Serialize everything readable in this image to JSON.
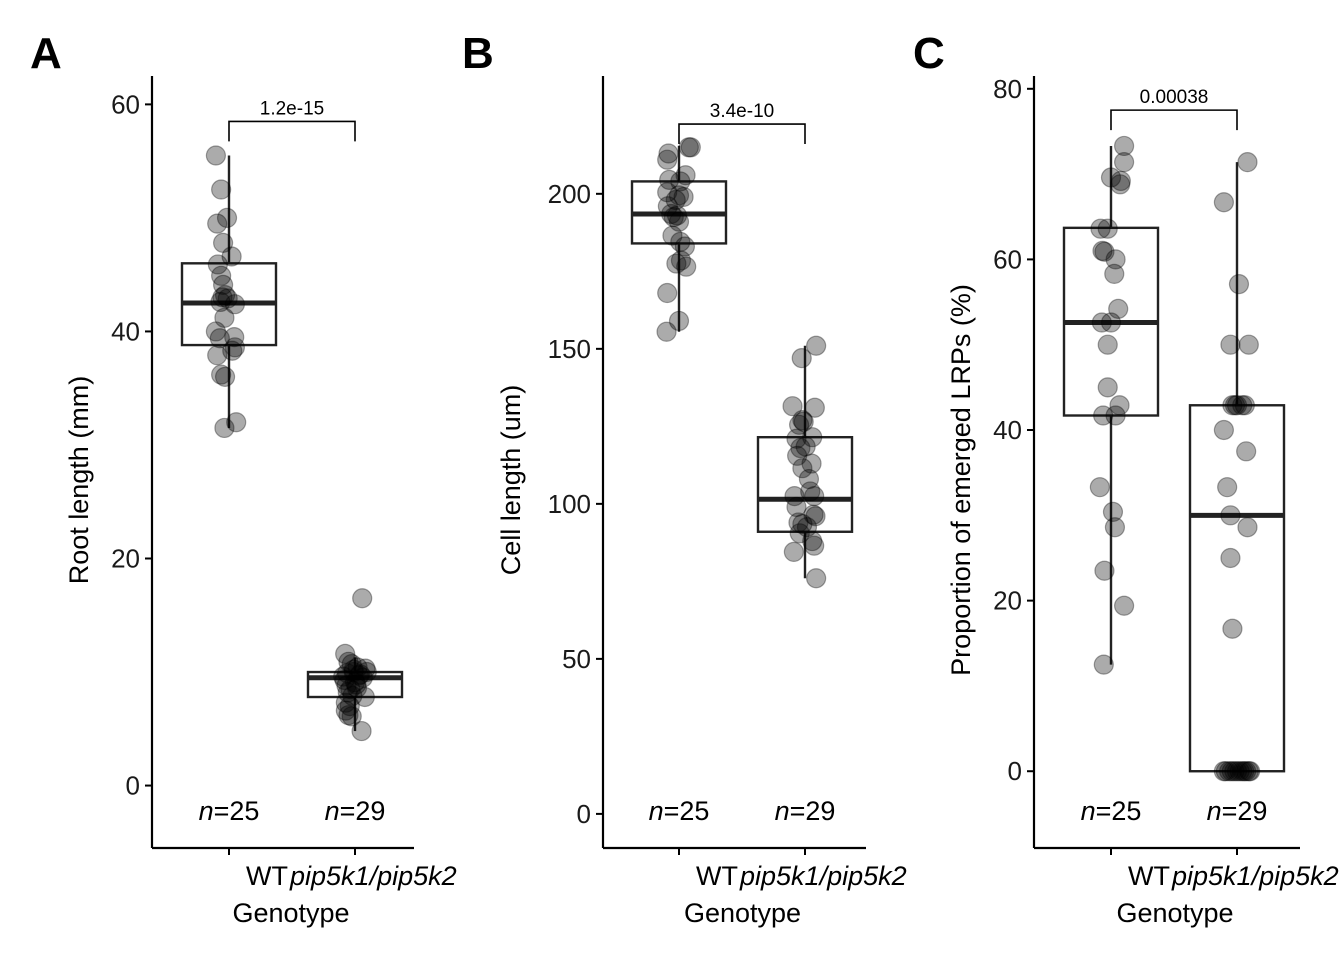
{
  "figure": {
    "panels": [
      {
        "letter": "A",
        "ylabel": "Root length (mm)",
        "xlabel": "Genotype",
        "categories": [
          "WT",
          "pip5k1/pip5k2"
        ],
        "n_labels": [
          {
            "prefix": "n",
            "text": "=25"
          },
          {
            "prefix": "n",
            "text": "=29"
          }
        ],
        "p_value": "1.2e-15",
        "y_ticks": [
          "0",
          "20",
          "40",
          "60"
        ]
      },
      {
        "letter": "B",
        "ylabel": "Cell length (um)",
        "xlabel": "Genotype",
        "categories": [
          "WT",
          "pip5k1/pip5k2"
        ],
        "n_labels": [
          {
            "prefix": "n",
            "text": "=25"
          },
          {
            "prefix": "n",
            "text": "=29"
          }
        ],
        "p_value": "3.4e-10",
        "y_ticks": [
          "0",
          "50",
          "100",
          "150",
          "200"
        ]
      },
      {
        "letter": "C",
        "ylabel": "Proportion of emerged LRPs (%)",
        "xlabel": "Genotype",
        "categories": [
          "WT",
          "pip5k1/pip5k2"
        ],
        "n_labels": [
          {
            "prefix": "n",
            "text": "=25"
          },
          {
            "prefix": "n",
            "text": "=29"
          }
        ],
        "p_value": "0.00038",
        "y_ticks": [
          "0",
          "20",
          "40",
          "60",
          "80"
        ]
      }
    ]
  },
  "chart_data": [
    {
      "type": "box",
      "title": "",
      "xlabel": "Genotype",
      "ylabel": "Root length (mm)",
      "categories": [
        "WT",
        "pip5k1/pip5k2"
      ],
      "ylim": [
        -5.5,
        62.5
      ],
      "y_ticks": [
        0,
        20,
        40,
        60
      ],
      "series": [
        {
          "category": "WT",
          "box": {
            "q1": 38.8,
            "median": 42.5,
            "q3": 46.0,
            "whisker_low": 31.5,
            "whisker_high": 55.5
          },
          "points": [
            {
              "offset": -0.2,
              "y": 55.5
            },
            {
              "offset": -0.12,
              "y": 52.5
            },
            {
              "offset": -0.18,
              "y": 49.5
            },
            {
              "offset": -0.03,
              "y": 50.0
            },
            {
              "offset": -0.09,
              "y": 47.8
            },
            {
              "offset": 0.04,
              "y": 46.6
            },
            {
              "offset": -0.17,
              "y": 45.9
            },
            {
              "offset": -0.12,
              "y": 44.9
            },
            {
              "offset": -0.1,
              "y": 43.0
            },
            {
              "offset": -0.06,
              "y": 43.2
            },
            {
              "offset": -0.13,
              "y": 42.6
            },
            {
              "offset": -0.02,
              "y": 42.9
            },
            {
              "offset": 0.09,
              "y": 42.4
            },
            {
              "offset": -0.07,
              "y": 41.2
            },
            {
              "offset": -0.2,
              "y": 40.0
            },
            {
              "offset": -0.14,
              "y": 39.4
            },
            {
              "offset": 0.08,
              "y": 39.5
            },
            {
              "offset": 0.09,
              "y": 38.6
            },
            {
              "offset": -0.18,
              "y": 37.9
            },
            {
              "offset": 0.05,
              "y": 38.3
            },
            {
              "offset": -0.12,
              "y": 36.2
            },
            {
              "offset": -0.06,
              "y": 36.0
            },
            {
              "offset": -0.07,
              "y": 31.5
            },
            {
              "offset": 0.11,
              "y": 32.0
            },
            {
              "offset": -0.09,
              "y": 44.1
            }
          ]
        },
        {
          "category": "pip5k1/pip5k2",
          "box": {
            "q1": 7.8,
            "median": 9.5,
            "q3": 10.0,
            "whisker_low": 4.8,
            "whisker_high": 11.3
          },
          "points": [
            {
              "offset": 0.11,
              "y": 16.5
            },
            {
              "offset": -0.15,
              "y": 11.6
            },
            {
              "offset": -0.1,
              "y": 10.9
            },
            {
              "offset": -0.05,
              "y": 10.7
            },
            {
              "offset": 0.16,
              "y": 10.3
            },
            {
              "offset": 0.04,
              "y": 10.4
            },
            {
              "offset": -0.12,
              "y": 9.9
            },
            {
              "offset": -0.02,
              "y": 10.0
            },
            {
              "offset": 0.08,
              "y": 9.8
            },
            {
              "offset": -0.16,
              "y": 9.3
            },
            {
              "offset": 0.0,
              "y": 9.1
            },
            {
              "offset": 0.12,
              "y": 9.5
            },
            {
              "offset": -0.13,
              "y": 8.8
            },
            {
              "offset": -0.07,
              "y": 8.5
            },
            {
              "offset": 0.03,
              "y": 8.6
            },
            {
              "offset": -0.11,
              "y": 8.2
            },
            {
              "offset": -0.04,
              "y": 7.9
            },
            {
              "offset": 0.15,
              "y": 7.8
            },
            {
              "offset": -0.14,
              "y": 7.3
            },
            {
              "offset": -0.08,
              "y": 7.0
            },
            {
              "offset": -0.14,
              "y": 6.6
            },
            {
              "offset": -0.1,
              "y": 6.2
            },
            {
              "offset": -0.05,
              "y": 6.1
            },
            {
              "offset": 0.1,
              "y": 4.8
            },
            {
              "offset": 0.06,
              "y": 9.7
            },
            {
              "offset": -0.02,
              "y": 10.2
            },
            {
              "offset": 0.18,
              "y": 10.0
            },
            {
              "offset": -0.18,
              "y": 9.6
            },
            {
              "offset": 0.02,
              "y": 8.9
            }
          ]
        }
      ],
      "annotations": [
        {
          "type": "bracket",
          "text": "1.2e-15",
          "y": 58.5
        }
      ]
    },
    {
      "type": "box",
      "title": "",
      "xlabel": "Genotype",
      "ylabel": "Cell length (um)",
      "categories": [
        "WT",
        "pip5k1/pip5k2"
      ],
      "ylim": [
        -11,
        238
      ],
      "y_ticks": [
        0,
        50,
        100,
        150,
        200
      ],
      "series": [
        {
          "category": "WT",
          "box": {
            "q1": 184.0,
            "median": 193.5,
            "q3": 204.0,
            "whisker_low": 155.5,
            "whisker_high": 215.5
          },
          "points": [
            {
              "offset": -0.16,
              "y": 213.0
            },
            {
              "offset": -0.18,
              "y": 211.0
            },
            {
              "offset": 0.15,
              "y": 215.0
            },
            {
              "offset": 0.18,
              "y": 215.0
            },
            {
              "offset": 0.1,
              "y": 206.0
            },
            {
              "offset": -0.15,
              "y": 204.5
            },
            {
              "offset": 0.02,
              "y": 204.0
            },
            {
              "offset": -0.18,
              "y": 200.5
            },
            {
              "offset": 0.0,
              "y": 199.5
            },
            {
              "offset": -0.05,
              "y": 198.0
            },
            {
              "offset": 0.07,
              "y": 199.0
            },
            {
              "offset": -0.17,
              "y": 196.0
            },
            {
              "offset": -0.12,
              "y": 193.5
            },
            {
              "offset": -0.08,
              "y": 192.5
            },
            {
              "offset": -0.03,
              "y": 193.0
            },
            {
              "offset": 0.0,
              "y": 191.0
            },
            {
              "offset": -0.1,
              "y": 186.5
            },
            {
              "offset": 0.02,
              "y": 184.5
            },
            {
              "offset": 0.09,
              "y": 183.0
            },
            {
              "offset": -0.04,
              "y": 177.5
            },
            {
              "offset": 0.03,
              "y": 178.5
            },
            {
              "offset": 0.11,
              "y": 176.5
            },
            {
              "offset": -0.18,
              "y": 168.0
            },
            {
              "offset": 0.0,
              "y": 159.0
            },
            {
              "offset": -0.19,
              "y": 155.5
            }
          ]
        },
        {
          "category": "pip5k1/pip5k2",
          "box": {
            "q1": 91.0,
            "median": 101.5,
            "q3": 121.5,
            "whisker_low": 76.0,
            "whisker_high": 151.0
          },
          "points": [
            {
              "offset": 0.17,
              "y": 151.0
            },
            {
              "offset": -0.05,
              "y": 147.0
            },
            {
              "offset": -0.19,
              "y": 131.5
            },
            {
              "offset": 0.15,
              "y": 131.0
            },
            {
              "offset": -0.04,
              "y": 127.0
            },
            {
              "offset": -0.02,
              "y": 126.5
            },
            {
              "offset": -0.09,
              "y": 125.5
            },
            {
              "offset": -0.13,
              "y": 121.0
            },
            {
              "offset": 0.11,
              "y": 121.5
            },
            {
              "offset": -0.07,
              "y": 118.0
            },
            {
              "offset": 0.01,
              "y": 118.5
            },
            {
              "offset": -0.12,
              "y": 115.5
            },
            {
              "offset": 0.1,
              "y": 113.0
            },
            {
              "offset": -0.04,
              "y": 111.5
            },
            {
              "offset": -0.16,
              "y": 102.5
            },
            {
              "offset": 0.14,
              "y": 102.5
            },
            {
              "offset": 0.13,
              "y": 96.5
            },
            {
              "offset": 0.16,
              "y": 96.0
            },
            {
              "offset": -0.1,
              "y": 94.0
            },
            {
              "offset": -0.04,
              "y": 93.5
            },
            {
              "offset": 0.03,
              "y": 92.5
            },
            {
              "offset": 0.11,
              "y": 88.0
            },
            {
              "offset": 0.14,
              "y": 86.5
            },
            {
              "offset": -0.17,
              "y": 84.5
            },
            {
              "offset": 0.17,
              "y": 76.0
            },
            {
              "offset": -0.08,
              "y": 90.5
            },
            {
              "offset": 0.06,
              "y": 108.0
            },
            {
              "offset": -0.13,
              "y": 99.0
            },
            {
              "offset": 0.08,
              "y": 104.0
            }
          ]
        }
      ],
      "annotations": [
        {
          "type": "bracket",
          "text": "3.4e-10",
          "y": 222.5
        }
      ]
    },
    {
      "type": "box",
      "title": "",
      "xlabel": "Genotype",
      "ylabel": "Proportion of emerged LRPs (%)",
      "categories": [
        "WT",
        "pip5k1/pip5k2"
      ],
      "ylim": [
        -9,
        81.5
      ],
      "y_ticks": [
        0,
        20,
        40,
        60,
        80
      ],
      "series": [
        {
          "category": "WT",
          "box": {
            "q1": 41.7,
            "median": 52.6,
            "q3": 63.7,
            "whisker_low": 12.5,
            "whisker_high": 73.3
          },
          "points": [
            {
              "offset": 0.2,
              "y": 73.3
            },
            {
              "offset": 0.2,
              "y": 71.4
            },
            {
              "offset": 0.0,
              "y": 69.6
            },
            {
              "offset": 0.15,
              "y": 69.2
            },
            {
              "offset": 0.14,
              "y": 68.8
            },
            {
              "offset": -0.16,
              "y": 63.6
            },
            {
              "offset": -0.05,
              "y": 63.6
            },
            {
              "offset": -0.13,
              "y": 61.0
            },
            {
              "offset": -0.1,
              "y": 60.9
            },
            {
              "offset": 0.07,
              "y": 60.0
            },
            {
              "offset": 0.05,
              "y": 58.3
            },
            {
              "offset": 0.11,
              "y": 54.2
            },
            {
              "offset": -0.14,
              "y": 52.6
            },
            {
              "offset": 0.0,
              "y": 52.6
            },
            {
              "offset": -0.05,
              "y": 50.0
            },
            {
              "offset": -0.05,
              "y": 45.0
            },
            {
              "offset": 0.13,
              "y": 42.9
            },
            {
              "offset": -0.12,
              "y": 41.7
            },
            {
              "offset": 0.07,
              "y": 41.7
            },
            {
              "offset": -0.17,
              "y": 33.3
            },
            {
              "offset": 0.03,
              "y": 30.4
            },
            {
              "offset": 0.06,
              "y": 28.6
            },
            {
              "offset": -0.1,
              "y": 23.5
            },
            {
              "offset": 0.2,
              "y": 19.4
            },
            {
              "offset": -0.11,
              "y": 12.5
            }
          ]
        },
        {
          "category": "pip5k1/pip5k2",
          "box": {
            "q1": 0.0,
            "median": 30.0,
            "q3": 42.9,
            "whisker_low": 0.0,
            "whisker_high": 71.4
          },
          "points": [
            {
              "offset": 0.16,
              "y": 71.4
            },
            {
              "offset": -0.2,
              "y": 66.7
            },
            {
              "offset": 0.03,
              "y": 57.1
            },
            {
              "offset": -0.1,
              "y": 50.0
            },
            {
              "offset": 0.18,
              "y": 50.0
            },
            {
              "offset": -0.07,
              "y": 42.9
            },
            {
              "offset": -0.03,
              "y": 42.9
            },
            {
              "offset": 0.0,
              "y": 42.9
            },
            {
              "offset": 0.08,
              "y": 42.9
            },
            {
              "offset": 0.12,
              "y": 42.9
            },
            {
              "offset": -0.2,
              "y": 40.0
            },
            {
              "offset": 0.14,
              "y": 37.5
            },
            {
              "offset": -0.15,
              "y": 33.3
            },
            {
              "offset": -0.1,
              "y": 30.0
            },
            {
              "offset": 0.16,
              "y": 28.6
            },
            {
              "offset": -0.1,
              "y": 25.0
            },
            {
              "offset": -0.07,
              "y": 16.7
            },
            {
              "offset": -0.2,
              "y": 0.0
            },
            {
              "offset": -0.17,
              "y": 0.0
            },
            {
              "offset": -0.12,
              "y": 0.0
            },
            {
              "offset": -0.08,
              "y": 0.0
            },
            {
              "offset": -0.04,
              "y": 0.0
            },
            {
              "offset": 0.0,
              "y": 0.0
            },
            {
              "offset": 0.04,
              "y": 0.0
            },
            {
              "offset": 0.08,
              "y": 0.0
            },
            {
              "offset": 0.11,
              "y": 0.0
            },
            {
              "offset": 0.14,
              "y": 0.0
            },
            {
              "offset": 0.18,
              "y": 0.0
            },
            {
              "offset": 0.2,
              "y": 0.0
            }
          ]
        }
      ],
      "annotations": [
        {
          "type": "bracket",
          "text": "0.00038",
          "y": 77.5
        }
      ]
    }
  ],
  "colors": {
    "point_fill": "#000000",
    "point_opacity": 0.33,
    "box_stroke": "#222222",
    "axis": "#000000"
  }
}
